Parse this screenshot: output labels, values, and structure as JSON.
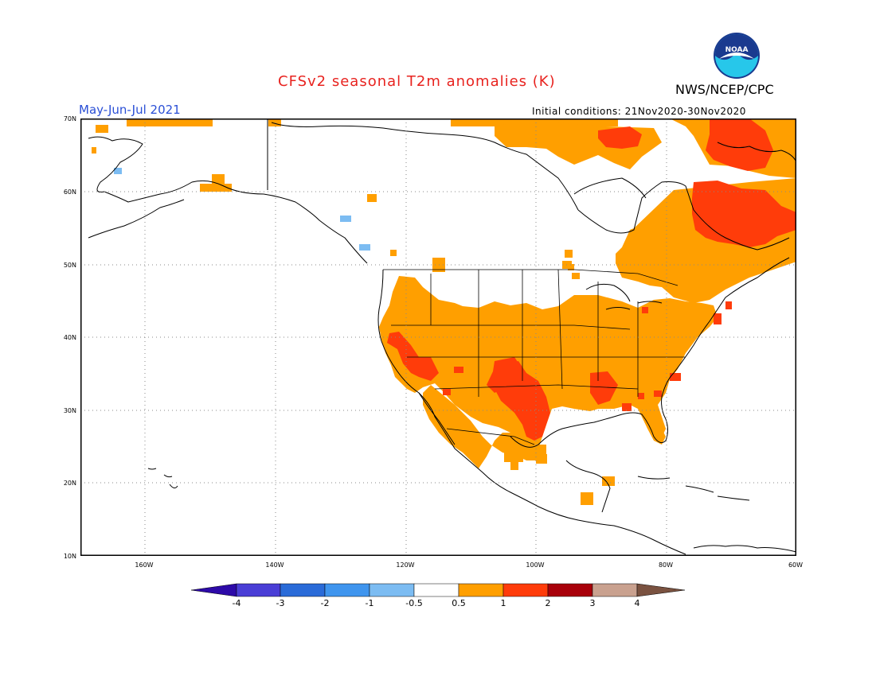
{
  "title": "CFSv2 seasonal T2m anomalies (K)",
  "season": "May-Jun-Jul 2021",
  "initial_conditions": "Initial conditions: 21Nov2020-30Nov2020",
  "agency": "NWS/NCEP/CPC",
  "logo": {
    "text": "NOAA",
    "colors": {
      "ring": "#1a3a8f",
      "sky": "#27c7ea",
      "bird": "#ffffff"
    }
  },
  "lat_labels": [
    "70N",
    "60N",
    "50N",
    "40N",
    "30N",
    "20N",
    "10N"
  ],
  "lon_labels": [
    "160W",
    "140W",
    "120W",
    "100W",
    "80W",
    "60W"
  ],
  "colorbar": {
    "labels": [
      "-4",
      "-3",
      "-2",
      "-1",
      "-0.5",
      "0.5",
      "1",
      "2",
      "3",
      "4"
    ],
    "colors": [
      "#2d0aa8",
      "#4a3ed6",
      "#2a6bd8",
      "#3f95ee",
      "#7cbcf2",
      "#ffffff",
      "#ff9f00",
      "#ff3c0a",
      "#a8000a",
      "#c9a18f",
      "#7a5240"
    ]
  },
  "legend_colors": {
    "warm_0_5_to_1": "#ff9f00",
    "warm_1_to_2": "#ff3c0a",
    "cool_-1_to_-0_5": "#7cbcf2"
  }
}
